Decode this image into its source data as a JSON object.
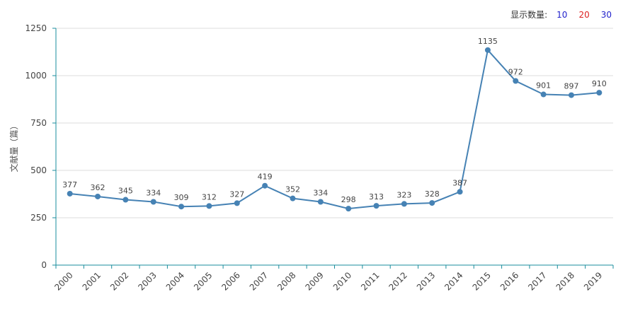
{
  "controls": {
    "label": "显示数量:",
    "options": [
      {
        "label": "10",
        "color": "#2222cc"
      },
      {
        "label": "20",
        "color": "#dd2222"
      },
      {
        "label": "30",
        "color": "#2222cc"
      }
    ]
  },
  "chart_data": {
    "type": "line",
    "title": "",
    "xlabel": "",
    "ylabel": "文献量（篇）",
    "ylim": [
      0,
      1250
    ],
    "yticks": [
      0,
      250,
      500,
      750,
      1000,
      1250
    ],
    "categories": [
      "2000",
      "2001",
      "2002",
      "2003",
      "2004",
      "2005",
      "2006",
      "2007",
      "2008",
      "2009",
      "2010",
      "2011",
      "2012",
      "2013",
      "2014",
      "2015",
      "2016",
      "2017",
      "2018",
      "2019"
    ],
    "series": [
      {
        "values": [
          377,
          362,
          345,
          334,
          309,
          312,
          327,
          419,
          352,
          334,
          298,
          313,
          323,
          328,
          387,
          1135,
          972,
          901,
          897,
          910
        ],
        "color": "#4682b4"
      }
    ],
    "grid": true,
    "legend": "none"
  }
}
